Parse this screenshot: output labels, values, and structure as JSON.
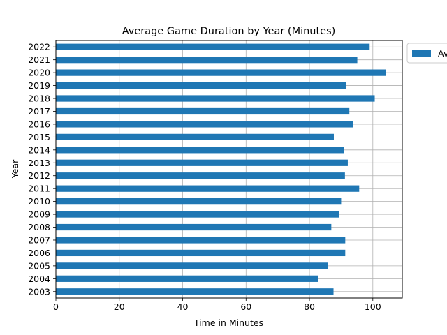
{
  "chart_data": {
    "type": "bar",
    "orientation": "horizontal",
    "title": "Average Game Duration by Year (Minutes)",
    "xlabel": "Time in Minutes",
    "ylabel": "Year",
    "xlim": [
      0,
      109.3
    ],
    "xticks": [
      0,
      20,
      40,
      60,
      80,
      100
    ],
    "grid": true,
    "legend_placement": "outside top-right",
    "categories": [
      "2003",
      "2004",
      "2005",
      "2006",
      "2007",
      "2008",
      "2009",
      "2010",
      "2011",
      "2012",
      "2013",
      "2014",
      "2015",
      "2016",
      "2017",
      "2018",
      "2019",
      "2020",
      "2021",
      "2022"
    ],
    "series": [
      {
        "name": "Av",
        "color": "#1f77b4",
        "values": [
          87.6,
          82.7,
          85.8,
          91.3,
          91.3,
          86.9,
          89.4,
          90.0,
          95.7,
          91.2,
          92.1,
          91.0,
          87.7,
          93.7,
          92.6,
          100.6,
          91.6,
          104.2,
          95.1,
          99.0
        ]
      }
    ]
  }
}
